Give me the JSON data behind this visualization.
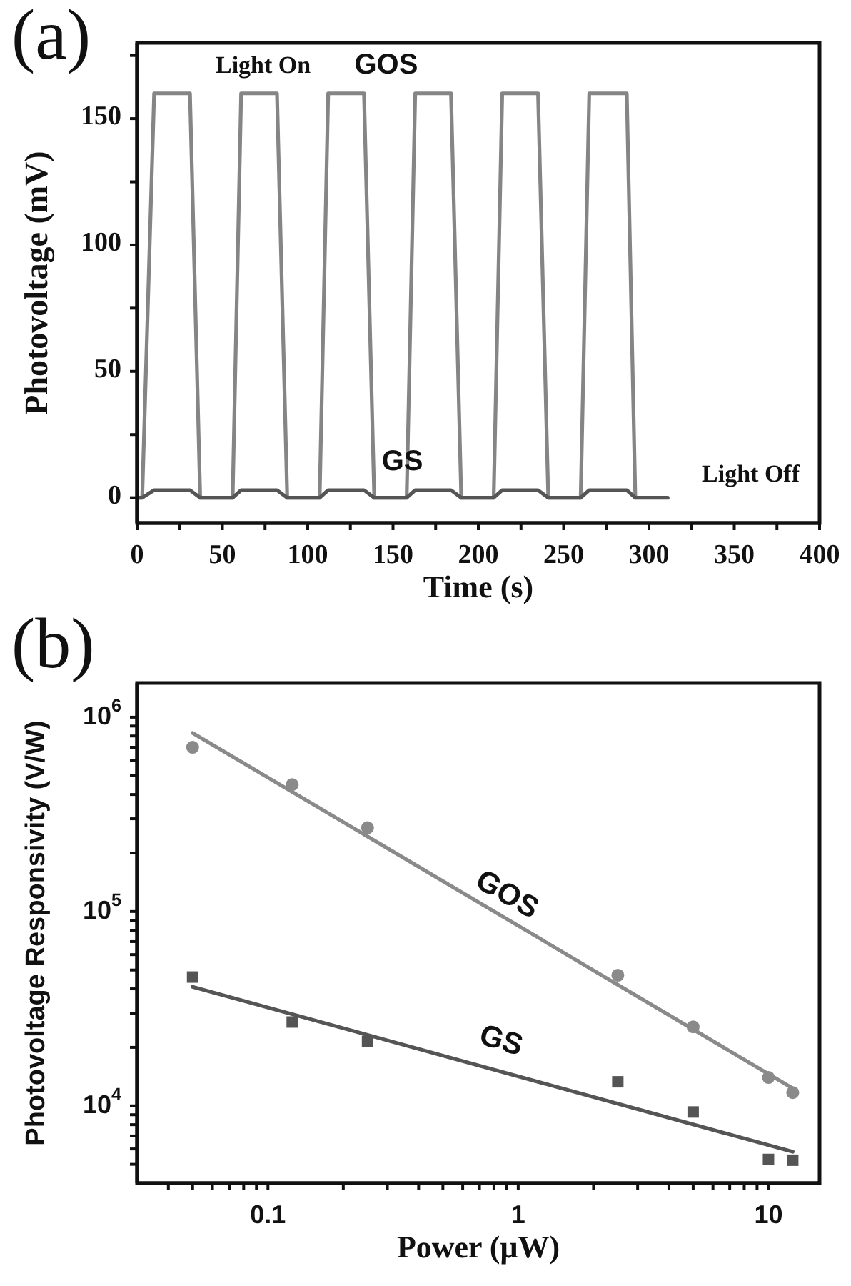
{
  "chart_data": [
    {
      "type": "line",
      "title": "(a)",
      "xlabel": "Time (s)",
      "ylabel": "Photovoltage (mV)",
      "xlim": [
        0,
        400
      ],
      "ylim": [
        -10,
        180
      ],
      "xticks": [
        0,
        {
          "value": 25,
          "label": null
        },
        50,
        {
          "value": 75,
          "label": null
        },
        100,
        {
          "value": 125,
          "label": null
        },
        150,
        {
          "value": 175,
          "label": null
        },
        200,
        {
          "value": 225,
          "label": null
        },
        250,
        {
          "value": 275,
          "label": null
        },
        300,
        {
          "value": 325,
          "label": null
        },
        350,
        {
          "value": 375,
          "label": null
        },
        400
      ],
      "yticks": [
        0,
        {
          "value": 25,
          "label": null
        },
        50,
        {
          "value": 75,
          "label": null
        },
        100,
        {
          "value": 125,
          "label": null
        },
        150,
        {
          "value": 175,
          "label": null
        }
      ],
      "series": [
        {
          "name": "GOS",
          "color": "#858585",
          "x": [
            0,
            3,
            10,
            31,
            37,
            56,
            61,
            82,
            88,
            107,
            112,
            133,
            139,
            158,
            163,
            184,
            190,
            209,
            214,
            235,
            241,
            260,
            265,
            287,
            292
          ],
          "values": [
            0,
            0,
            160,
            160,
            0,
            0,
            160,
            160,
            0,
            0,
            160,
            160,
            0,
            0,
            160,
            160,
            0,
            0,
            160,
            160,
            0,
            0,
            160,
            160,
            0
          ]
        },
        {
          "name": "GS",
          "color": "#555555",
          "x": [
            0,
            3,
            10,
            31,
            37,
            56,
            61,
            82,
            88,
            107,
            112,
            133,
            139,
            158,
            163,
            184,
            190,
            209,
            214,
            235,
            241,
            260,
            265,
            287,
            292,
            311
          ],
          "values": [
            0,
            0,
            3,
            3,
            0,
            0,
            3,
            3,
            0,
            0,
            3,
            3,
            0,
            0,
            3,
            3,
            0,
            0,
            3,
            3,
            0,
            0,
            3,
            3,
            0,
            0
          ]
        }
      ],
      "annotations": [
        "Light On",
        "Light Off"
      ],
      "marker": "none",
      "line_style": "solid",
      "grid": false,
      "legend": false
    },
    {
      "type": "scatter",
      "title": "(b)",
      "xlabel": "Power (μW)",
      "ylabel": "Photovoltage Responsivity (V/W)",
      "log": "xy",
      "xlim": [
        0.03,
        16
      ],
      "ylim": [
        4000,
        1500000
      ],
      "xticks": [
        {
          "value": 0.04,
          "label": null
        },
        {
          "value": 0.05,
          "label": null
        },
        {
          "value": 0.06,
          "label": null
        },
        {
          "value": 0.07,
          "label": null
        },
        {
          "value": 0.08,
          "label": null
        },
        {
          "value": 0.09,
          "label": null
        },
        0.1,
        {
          "value": 0.2,
          "label": null
        },
        {
          "value": 0.3,
          "label": null
        },
        {
          "value": 0.4,
          "label": null
        },
        {
          "value": 0.5,
          "label": null
        },
        {
          "value": 0.6,
          "label": null
        },
        {
          "value": 0.7,
          "label": null
        },
        {
          "value": 0.8,
          "label": null
        },
        {
          "value": 0.9,
          "label": null
        },
        1,
        {
          "value": 2,
          "label": null
        },
        {
          "value": 3,
          "label": null
        },
        {
          "value": 4,
          "label": null
        },
        {
          "value": 5,
          "label": null
        },
        {
          "value": 6,
          "label": null
        },
        {
          "value": 7,
          "label": null
        },
        {
          "value": 8,
          "label": null
        },
        {
          "value": 9,
          "label": null
        },
        10
      ],
      "yticks": [
        {
          "value": 5000,
          "label": null
        },
        {
          "value": 6000,
          "label": null
        },
        {
          "value": 7000,
          "label": null
        },
        {
          "value": 8000,
          "label": null
        },
        {
          "value": 9000,
          "label": null
        },
        {
          "value": 10000,
          "label": "10$^{4}$"
        },
        {
          "value": 20000,
          "label": null
        },
        {
          "value": 30000,
          "label": null
        },
        {
          "value": 40000,
          "label": null
        },
        {
          "value": 50000,
          "label": null
        },
        {
          "value": 60000,
          "label": null
        },
        {
          "value": 70000,
          "label": null
        },
        {
          "value": 80000,
          "label": null
        },
        {
          "value": 90000,
          "label": null
        },
        {
          "value": 100000,
          "label": "10$^{5}$"
        },
        {
          "value": 200000,
          "label": null
        },
        {
          "value": 300000,
          "label": null
        },
        {
          "value": 400000,
          "label": null
        },
        {
          "value": 500000,
          "label": null
        },
        {
          "value": 600000,
          "label": null
        },
        {
          "value": 700000,
          "label": null
        },
        {
          "value": 800000,
          "label": null
        },
        {
          "value": 900000,
          "label": null
        },
        {
          "value": 1000000,
          "label": "10$^{6}$"
        }
      ],
      "series": [
        {
          "name": "GOS",
          "color": "#8a8a8a",
          "marker": "circle",
          "x": [
            0.05,
            0.125,
            0.25,
            2.5,
            5,
            10,
            12.5
          ],
          "values": [
            700000,
            450000,
            270000,
            47000,
            25500,
            14000,
            11700
          ]
        },
        {
          "name": "GS",
          "color": "#555555",
          "marker": "square",
          "x": [
            0.05,
            0.125,
            0.25,
            2.5,
            5,
            10,
            12.5
          ],
          "values": [
            46000,
            27000,
            21500,
            13300,
            9300,
            5300,
            5250
          ]
        },
        {
          "type": "line",
          "color": "#8a8a8a",
          "x": [
            0.05,
            12.5
          ],
          "values": [
            830000,
            12300
          ]
        },
        {
          "type": "line",
          "color": "#555555",
          "x": [
            0.05,
            12.5
          ],
          "values": [
            41000,
            5800
          ]
        }
      ],
      "marker": "none",
      "line_style": "solid",
      "grid": false,
      "legend": false
    }
  ]
}
